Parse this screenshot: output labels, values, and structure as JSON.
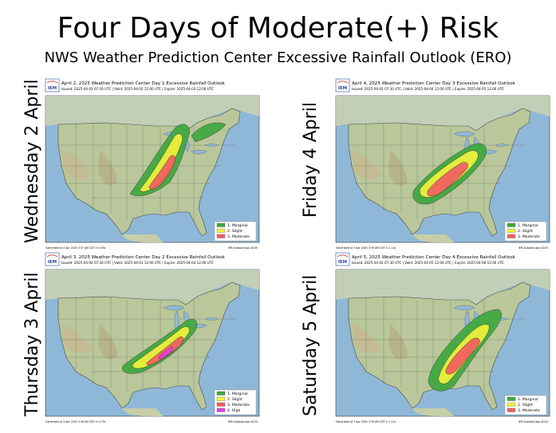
{
  "title": "Four Days of Moderate(+) Risk",
  "subtitle": "NWS Weather Prediction Center Excessive Rainfall Outlook (ERO)",
  "panels": [
    {
      "row_label": "Wednesday 2 April",
      "logo_text": "IEM",
      "map_title": "April 2, 2025 Weather Prediction Center Day 1 Excessive Rainfall Outlook",
      "map_subtitle": "Issued: 2025-04-02 07:30 UTC | Valid: 2025-04-02 12:00 UTC | Expire: 2025-04-03 12:00 UTC",
      "legend": [
        "1. Marginal",
        "2. Slight",
        "3. Moderate"
      ],
      "footer_left": "Generated at 3 Apr 2025 3:37 AM CDT in 0.93s",
      "footer_right": "IEM Autoplot App #220"
    },
    {
      "row_label": "Friday 4 April",
      "logo_text": "IEM",
      "map_title": "April 4, 2025 Weather Prediction Center Day 3 Excessive Rainfall Outlook",
      "map_subtitle": "Issued: 2025-04-02 07:30 UTC | Valid: 2025-04-04 12:00 UTC | Expire: 2025-04-05 12:00 UTC",
      "legend": [
        "1. Marginal",
        "2. Slight",
        "3. Moderate"
      ],
      "footer_left": "Generated at 3 Apr 2025 3:39 AM CDT in 1.14s",
      "footer_right": "IEM Autoplot App #220"
    },
    {
      "row_label": "Thursday 3 April",
      "logo_text": "IEM",
      "map_title": "April 3, 2025 Weather Prediction Center Day 2 Excessive Rainfall Outlook",
      "map_subtitle": "Issued: 2025-04-02 07:30 UTC | Valid: 2025-04-03 12:00 UTC | Expire: 2025-04-04 12:00 UTC",
      "legend": [
        "1. Marginal",
        "2. Slight",
        "3. Moderate",
        "4. High"
      ],
      "footer_left": "Generated at 3 Apr 2025 3:38 AM CDT in 0.75s",
      "footer_right": "IEM Autoplot App #220"
    },
    {
      "row_label": "Saturday 5 April",
      "logo_text": "IEM",
      "map_title": "April 5, 2025 Weather Prediction Center Day 4 Excessive Rainfall Outlook",
      "map_subtitle": "Issued: 2025-04-02 07:30 UTC | Valid: 2025-04-05 12:00 UTC | Expire: 2025-04-06 12:00 UTC",
      "legend": [
        "1. Marginal",
        "2. Slight",
        "3. Moderate"
      ],
      "footer_left": "Generated at 3 Apr 2025 3:39 AM CDT in 1.01s",
      "footer_right": "IEM Autoplot App #220"
    }
  ],
  "colors": {
    "marginal": "#3ea83e",
    "slight": "#f2f23c",
    "moderate": "#f06060",
    "high": "#e33fe3",
    "ocean": "#8fb8d8",
    "land": "#b9c79a"
  }
}
